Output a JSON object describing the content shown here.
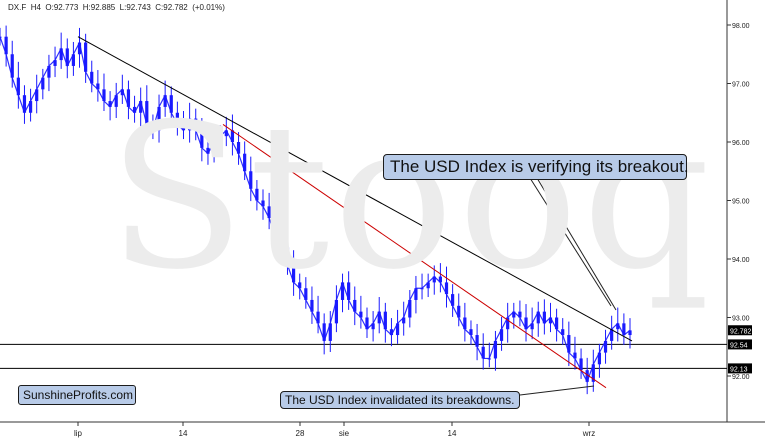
{
  "header": {
    "symbol": "DX.F",
    "timeframe": "H4",
    "open": "O:92.773",
    "high": "H:92.885",
    "low": "L:92.743",
    "close": "C:92.782",
    "change": "(+0.01%)"
  },
  "watermark": "Stooq",
  "brand_label": "SunshineProfits.com",
  "annotations": {
    "breakout": "The USD Index is verifying its breakout.",
    "breakdowns": "The USD Index invalidated its breakdowns."
  },
  "colors": {
    "candles": "#1a1aff",
    "resistance_line": "#000000",
    "support_line": "#cc0000",
    "callout_fill": "#b8cbe8",
    "price_tag": "#000000"
  },
  "chart_data": {
    "type": "line",
    "title": "",
    "xlabel": "",
    "ylabel": "",
    "ylim": [
      91.7,
      98.2
    ],
    "x_ticks": [
      "lip",
      "14",
      "28",
      "sie",
      "14",
      "wrz"
    ],
    "y_ticks": [
      "98.00",
      "97.00",
      "96.00",
      "95.00",
      "94.00",
      "93.00",
      "92.00"
    ],
    "price_tags": [
      "92.782",
      "92.54",
      "92.13"
    ],
    "horizontal_levels": [
      92.54,
      92.13
    ],
    "grid": false,
    "series": [
      {
        "values": [
          97.8,
          97.5,
          97.1,
          96.8,
          96.5,
          96.7,
          96.9,
          97.1,
          97.3,
          97.4,
          97.6,
          97.3,
          97.5,
          97.7,
          97.2,
          97.0,
          96.9,
          96.7,
          96.6,
          96.8,
          96.9,
          96.6,
          96.5,
          96.7,
          96.3,
          96.2,
          96.6,
          96.8,
          96.5,
          96.3,
          96.2,
          96.4,
          96.2,
          95.9,
          95.8,
          96.0,
          96.1,
          96.2,
          96.0,
          95.8,
          95.5,
          95.2,
          95.0,
          94.9,
          94.7,
          94.4,
          94.2,
          93.9,
          93.6,
          93.5,
          93.3,
          93.1,
          92.9,
          92.6,
          92.9,
          93.3,
          93.6,
          93.3,
          93.1,
          93.0,
          92.8,
          92.9,
          93.1,
          92.8,
          92.7,
          92.9,
          93.0,
          93.3,
          93.5,
          93.5,
          93.6,
          93.7,
          93.6,
          93.4,
          93.2,
          93.0,
          92.8,
          92.7,
          92.5,
          92.3,
          92.3,
          92.6,
          92.8,
          93.0,
          93.1,
          93.0,
          92.8,
          92.9,
          93.1,
          92.9,
          93.0,
          92.8,
          92.7,
          92.4,
          92.3,
          92.1,
          91.9,
          92.2,
          92.4,
          92.6,
          92.8,
          92.9,
          92.7,
          92.78
        ]
      }
    ],
    "trendlines": [
      {
        "name": "resistance",
        "from": [
          "lip",
          97.8
        ],
        "to": [
          "wrz",
          92.6
        ]
      },
      {
        "name": "support",
        "from": [
          "14",
          96.3
        ],
        "to": [
          "wrz",
          91.8
        ]
      }
    ]
  }
}
